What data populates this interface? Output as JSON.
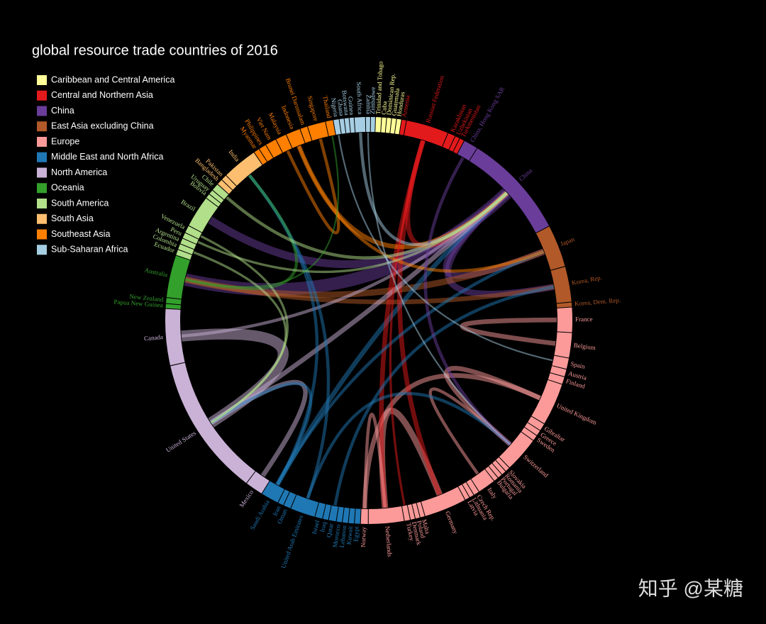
{
  "chart_data": {
    "type": "chord",
    "title": "global resource trade countries of 2016",
    "watermark": "知乎 @某糖",
    "groups": [
      {
        "name": "Caribbean and Central America",
        "color": "#ffff99"
      },
      {
        "name": "Central and Northern Asia",
        "color": "#e31a1c"
      },
      {
        "name": "China",
        "color": "#6a3d9a"
      },
      {
        "name": "East Asia excluding China",
        "color": "#b15928"
      },
      {
        "name": "Europe",
        "color": "#fb9a99"
      },
      {
        "name": "Middle East and North Africa",
        "color": "#1f78b4"
      },
      {
        "name": "North America",
        "color": "#cab2d6"
      },
      {
        "name": "Oceania",
        "color": "#33a02c"
      },
      {
        "name": "South America",
        "color": "#b2df8a"
      },
      {
        "name": "South Asia",
        "color": "#fdbf6f"
      },
      {
        "name": "Southeast Asia",
        "color": "#ff7f00"
      },
      {
        "name": "Sub-Saharan Africa",
        "color": "#a6cee3"
      }
    ],
    "nodes": [
      {
        "name": "Nigeria",
        "group": "Sub-Saharan Africa",
        "value": 1.5
      },
      {
        "name": "Ghana",
        "group": "Sub-Saharan Africa",
        "value": 1.2
      },
      {
        "name": "Botswana",
        "group": "Sub-Saharan Africa",
        "value": 1.2
      },
      {
        "name": "Guinea",
        "group": "Sub-Saharan Africa",
        "value": 1.2
      },
      {
        "name": "South Africa",
        "group": "Sub-Saharan Africa",
        "value": 3
      },
      {
        "name": "Zambia",
        "group": "Sub-Saharan Africa",
        "value": 1.2
      },
      {
        "name": "Zimbabwe",
        "group": "Sub-Saharan Africa",
        "value": 1.2
      },
      {
        "name": "Trinidad and Tobago",
        "group": "Caribbean and Central America",
        "value": 1.5
      },
      {
        "name": "Cuba",
        "group": "Caribbean and Central America",
        "value": 1.2
      },
      {
        "name": "Dominican Rep.",
        "group": "Caribbean and Central America",
        "value": 1.2
      },
      {
        "name": "Guatemala",
        "group": "Caribbean and Central America",
        "value": 1.2
      },
      {
        "name": "Honduras",
        "group": "Caribbean and Central America",
        "value": 1.2
      },
      {
        "name": "Armenia",
        "group": "Central and Northern Asia",
        "value": 1.2
      },
      {
        "name": "Russian Federation",
        "group": "Central and Northern Asia",
        "value": 12
      },
      {
        "name": "Kazakhstan",
        "group": "Central and Northern Asia",
        "value": 2
      },
      {
        "name": "Uzbekistan",
        "group": "Central and Northern Asia",
        "value": 1.2
      },
      {
        "name": "Turkmenistan",
        "group": "Central and Northern Asia",
        "value": 1.2
      },
      {
        "name": "China, Hong Kong SAR",
        "group": "China",
        "value": 4
      },
      {
        "name": "China",
        "group": "China",
        "value": 30
      },
      {
        "name": "Japan",
        "group": "East Asia excluding China",
        "value": 12
      },
      {
        "name": "Korea, Rep.",
        "group": "East Asia excluding China",
        "value": 10
      },
      {
        "name": "Korea, Dem. Rep.",
        "group": "East Asia excluding China",
        "value": 1.2
      },
      {
        "name": "France",
        "group": "Europe",
        "value": 7
      },
      {
        "name": "Belgium",
        "group": "Europe",
        "value": 7
      },
      {
        "name": "Spain",
        "group": "Europe",
        "value": 3
      },
      {
        "name": "Austria",
        "group": "Europe",
        "value": 2
      },
      {
        "name": "Finland",
        "group": "Europe",
        "value": 2
      },
      {
        "name": "United Kingdom",
        "group": "Europe",
        "value": 12
      },
      {
        "name": "Gibraltar",
        "group": "Europe",
        "value": 2
      },
      {
        "name": "Greece",
        "group": "Europe",
        "value": 1.5
      },
      {
        "name": "Sweden",
        "group": "Europe",
        "value": 1.5
      },
      {
        "name": "Switzerland",
        "group": "Europe",
        "value": 10
      },
      {
        "name": "Slovakia",
        "group": "Europe",
        "value": 1.2
      },
      {
        "name": "Romania",
        "group": "Europe",
        "value": 1.2
      },
      {
        "name": "Portugal",
        "group": "Europe",
        "value": 1.2
      },
      {
        "name": "Bulgaria",
        "group": "Europe",
        "value": 1.2
      },
      {
        "name": "Italy",
        "group": "Europe",
        "value": 5
      },
      {
        "name": "Czech Rep.",
        "group": "Europe",
        "value": 1.5
      },
      {
        "name": "Lithuania",
        "group": "Europe",
        "value": 1.2
      },
      {
        "name": "Latvia",
        "group": "Europe",
        "value": 1.2
      },
      {
        "name": "Germany",
        "group": "Europe",
        "value": 12
      },
      {
        "name": "Malta",
        "group": "Europe",
        "value": 1.2
      },
      {
        "name": "Poland",
        "group": "Europe",
        "value": 1.2
      },
      {
        "name": "Denmark",
        "group": "Europe",
        "value": 1.2
      },
      {
        "name": "Turkey",
        "group": "Europe",
        "value": 1.5
      },
      {
        "name": "Netherlands",
        "group": "Europe",
        "value": 10
      },
      {
        "name": "Norway",
        "group": "Europe",
        "value": 2
      },
      {
        "name": "Egypt",
        "group": "Middle East and North Africa",
        "value": 1.5
      },
      {
        "name": "Kuwait",
        "group": "Middle East and North Africa",
        "value": 1.5
      },
      {
        "name": "Lebanon",
        "group": "Middle East and North Africa",
        "value": 1.5
      },
      {
        "name": "Morocco",
        "group": "Middle East and North Africa",
        "value": 1.5
      },
      {
        "name": "Qatar",
        "group": "Middle East and North Africa",
        "value": 2
      },
      {
        "name": "Iraq",
        "group": "Middle East and North Africa",
        "value": 1.5
      },
      {
        "name": "Israel",
        "group": "Middle East and North Africa",
        "value": 2
      },
      {
        "name": "United Arab Emirates",
        "group": "Middle East and North Africa",
        "value": 7
      },
      {
        "name": "Oman",
        "group": "Middle East and North Africa",
        "value": 2
      },
      {
        "name": "Iran",
        "group": "Middle East and North Africa",
        "value": 1.5
      },
      {
        "name": "Saudi Arabia",
        "group": "Middle East and North Africa",
        "value": 5
      },
      {
        "name": "Mexico",
        "group": "North America",
        "value": 5
      },
      {
        "name": "United States",
        "group": "North America",
        "value": 40
      },
      {
        "name": "Canada",
        "group": "North America",
        "value": 16
      },
      {
        "name": "Papua New Guinea",
        "group": "Oceania",
        "value": 1.2
      },
      {
        "name": "New Zealand",
        "group": "Oceania",
        "value": 1.5
      },
      {
        "name": "Australia",
        "group": "Oceania",
        "value": 12
      },
      {
        "name": "Ecuador",
        "group": "South America",
        "value": 1.5
      },
      {
        "name": "Colombia",
        "group": "South America",
        "value": 1.5
      },
      {
        "name": "Argentina",
        "group": "South America",
        "value": 1.5
      },
      {
        "name": "Peru",
        "group": "South America",
        "value": 1.5
      },
      {
        "name": "Venezuela",
        "group": "South America",
        "value": 2
      },
      {
        "name": "Brazil",
        "group": "South America",
        "value": 9
      },
      {
        "name": "Bolivia",
        "group": "South America",
        "value": 1.2
      },
      {
        "name": "Uruguay",
        "group": "South America",
        "value": 1.2
      },
      {
        "name": "Chile",
        "group": "South America",
        "value": 2
      },
      {
        "name": "Bangladesh",
        "group": "South Asia",
        "value": 1.5
      },
      {
        "name": "Pakistan",
        "group": "South Asia",
        "value": 1.5
      },
      {
        "name": "India",
        "group": "South Asia",
        "value": 10
      },
      {
        "name": "Myanmar",
        "group": "Southeast Asia",
        "value": 1.5
      },
      {
        "name": "Philippines",
        "group": "Southeast Asia",
        "value": 2
      },
      {
        "name": "Viet Nam",
        "group": "Southeast Asia",
        "value": 3
      },
      {
        "name": "Malaysia",
        "group": "Southeast Asia",
        "value": 3
      },
      {
        "name": "Indonesia",
        "group": "Southeast Asia",
        "value": 4
      },
      {
        "name": "Brunei Darussalam",
        "group": "Southeast Asia",
        "value": 2
      },
      {
        "name": "Singapore",
        "group": "Southeast Asia",
        "value": 5
      },
      {
        "name": "Thailand",
        "group": "Southeast Asia",
        "value": 2
      }
    ],
    "links": [
      {
        "source": "China",
        "target": "Australia",
        "value": 8
      },
      {
        "source": "China",
        "target": "Brazil",
        "value": 5
      },
      {
        "source": "China",
        "target": "Korea, Rep.",
        "value": 4
      },
      {
        "source": "China",
        "target": "Japan",
        "value": 4
      },
      {
        "source": "Japan",
        "target": "Australia",
        "value": 4
      },
      {
        "source": "Korea, Rep.",
        "target": "Australia",
        "value": 3
      },
      {
        "source": "Russian Federation",
        "target": "China",
        "value": 3
      },
      {
        "source": "Saudi Arabia",
        "target": "China",
        "value": 3
      },
      {
        "source": "United States",
        "target": "Canada",
        "value": 7
      },
      {
        "source": "United States",
        "target": "Mexico",
        "value": 3
      },
      {
        "source": "Canada",
        "target": "China",
        "value": 2
      },
      {
        "source": "Germany",
        "target": "Netherlands",
        "value": 4
      },
      {
        "source": "France",
        "target": "Belgium",
        "value": 3
      },
      {
        "source": "United Kingdom",
        "target": "Norway",
        "value": 3
      },
      {
        "source": "Russian Federation",
        "target": "Germany",
        "value": 3
      },
      {
        "source": "Russian Federation",
        "target": "Netherlands",
        "value": 3
      },
      {
        "source": "Italy",
        "target": "Switzerland",
        "value": 2
      },
      {
        "source": "United Kingdom",
        "target": "Switzerland",
        "value": 3
      },
      {
        "source": "United States",
        "target": "China",
        "value": 3
      },
      {
        "source": "Saudi Arabia",
        "target": "India",
        "value": 2
      },
      {
        "source": "United Arab Emirates",
        "target": "India",
        "value": 2
      },
      {
        "source": "Singapore",
        "target": "Malaysia",
        "value": 2
      },
      {
        "source": "Indonesia",
        "target": "China",
        "value": 3
      },
      {
        "source": "Saudi Arabia",
        "target": "Japan",
        "value": 2
      },
      {
        "source": "Indonesia",
        "target": "Japan",
        "value": 2
      },
      {
        "source": "Qatar",
        "target": "Korea, Rep.",
        "value": 2
      },
      {
        "source": "South Africa",
        "target": "China",
        "value": 2
      },
      {
        "source": "Australia",
        "target": "India",
        "value": 2
      },
      {
        "source": "Saudi Arabia",
        "target": "United States",
        "value": 2
      },
      {
        "source": "Norway",
        "target": "Netherlands",
        "value": 2
      },
      {
        "source": "United Arab Emirates",
        "target": "Switzerland",
        "value": 2
      },
      {
        "source": "Venezuela",
        "target": "United States",
        "value": 1.5
      },
      {
        "source": "China, Hong Kong SAR",
        "target": "Switzerland",
        "value": 2
      },
      {
        "source": "Russian Federation",
        "target": "Turkey",
        "value": 1.5
      },
      {
        "source": "Chile",
        "target": "China",
        "value": 2
      },
      {
        "source": "Peru",
        "target": "China",
        "value": 1.5
      },
      {
        "source": "Australia",
        "target": "Thailand",
        "value": 1
      },
      {
        "source": "Colombia",
        "target": "United States",
        "value": 1.5
      },
      {
        "source": "Nigeria",
        "target": "Spain",
        "value": 1
      },
      {
        "source": "Zambia",
        "target": "Switzerland",
        "value": 1
      }
    ]
  }
}
